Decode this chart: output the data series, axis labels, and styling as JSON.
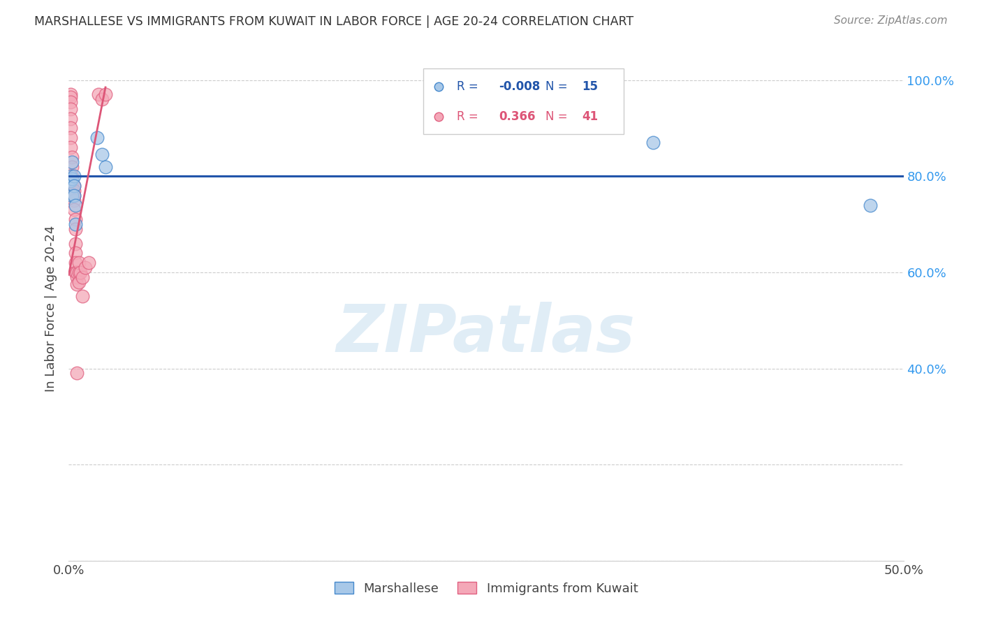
{
  "title": "MARSHALLESE VS IMMIGRANTS FROM KUWAIT IN LABOR FORCE | AGE 20-24 CORRELATION CHART",
  "source": "Source: ZipAtlas.com",
  "ylabel": "In Labor Force | Age 20-24",
  "xlim": [
    0.0,
    0.5
  ],
  "ylim": [
    0.0,
    1.05
  ],
  "xtick_positions": [
    0.0,
    0.1,
    0.2,
    0.3,
    0.4,
    0.5
  ],
  "xtick_labels": [
    "0.0%",
    "",
    "",
    "",
    "",
    "50.0%"
  ],
  "ytick_positions": [
    0.0,
    0.2,
    0.4,
    0.6,
    0.8,
    1.0
  ],
  "ytick_labels_right": [
    "",
    "",
    "40.0%",
    "60.0%",
    "80.0%",
    "100.0%"
  ],
  "blue_fill": "#a8c8e8",
  "blue_edge": "#4488cc",
  "pink_fill": "#f4a8b8",
  "pink_edge": "#e06080",
  "blue_line_color": "#2255aa",
  "pink_line_color": "#dd5577",
  "legend_R_blue": "-0.008",
  "legend_N_blue": "15",
  "legend_R_pink": "0.366",
  "legend_N_pink": "41",
  "legend_label_blue": "Marshallese",
  "legend_label_pink": "Immigrants from Kuwait",
  "watermark": "ZIPatlas",
  "blue_scatter_x": [
    0.001,
    0.001,
    0.002,
    0.002,
    0.002,
    0.003,
    0.003,
    0.003,
    0.004,
    0.004,
    0.017,
    0.02,
    0.022,
    0.35,
    0.48
  ],
  "blue_scatter_y": [
    0.8,
    0.79,
    0.83,
    0.795,
    0.76,
    0.8,
    0.78,
    0.76,
    0.74,
    0.7,
    0.88,
    0.845,
    0.82,
    0.87,
    0.74
  ],
  "pink_scatter_x": [
    0.001,
    0.001,
    0.001,
    0.001,
    0.001,
    0.001,
    0.001,
    0.001,
    0.002,
    0.002,
    0.002,
    0.002,
    0.002,
    0.002,
    0.002,
    0.003,
    0.003,
    0.003,
    0.003,
    0.003,
    0.004,
    0.004,
    0.004,
    0.004,
    0.004,
    0.004,
    0.005,
    0.005,
    0.005,
    0.005,
    0.006,
    0.006,
    0.006,
    0.007,
    0.008,
    0.008,
    0.01,
    0.012,
    0.018,
    0.02,
    0.022
  ],
  "pink_scatter_y": [
    0.97,
    0.965,
    0.955,
    0.94,
    0.92,
    0.9,
    0.88,
    0.86,
    0.84,
    0.82,
    0.8,
    0.79,
    0.775,
    0.76,
    0.78,
    0.78,
    0.77,
    0.76,
    0.75,
    0.73,
    0.71,
    0.69,
    0.66,
    0.64,
    0.62,
    0.6,
    0.59,
    0.575,
    0.39,
    0.6,
    0.6,
    0.58,
    0.62,
    0.6,
    0.59,
    0.55,
    0.61,
    0.62,
    0.97,
    0.96,
    0.97
  ],
  "blue_line_x0": 0.0,
  "blue_line_x1": 0.5,
  "blue_line_y_val": 0.8,
  "pink_line_x0": 0.0,
  "pink_line_x1": 0.022,
  "pink_line_y0": 0.595,
  "pink_line_y1": 0.985
}
